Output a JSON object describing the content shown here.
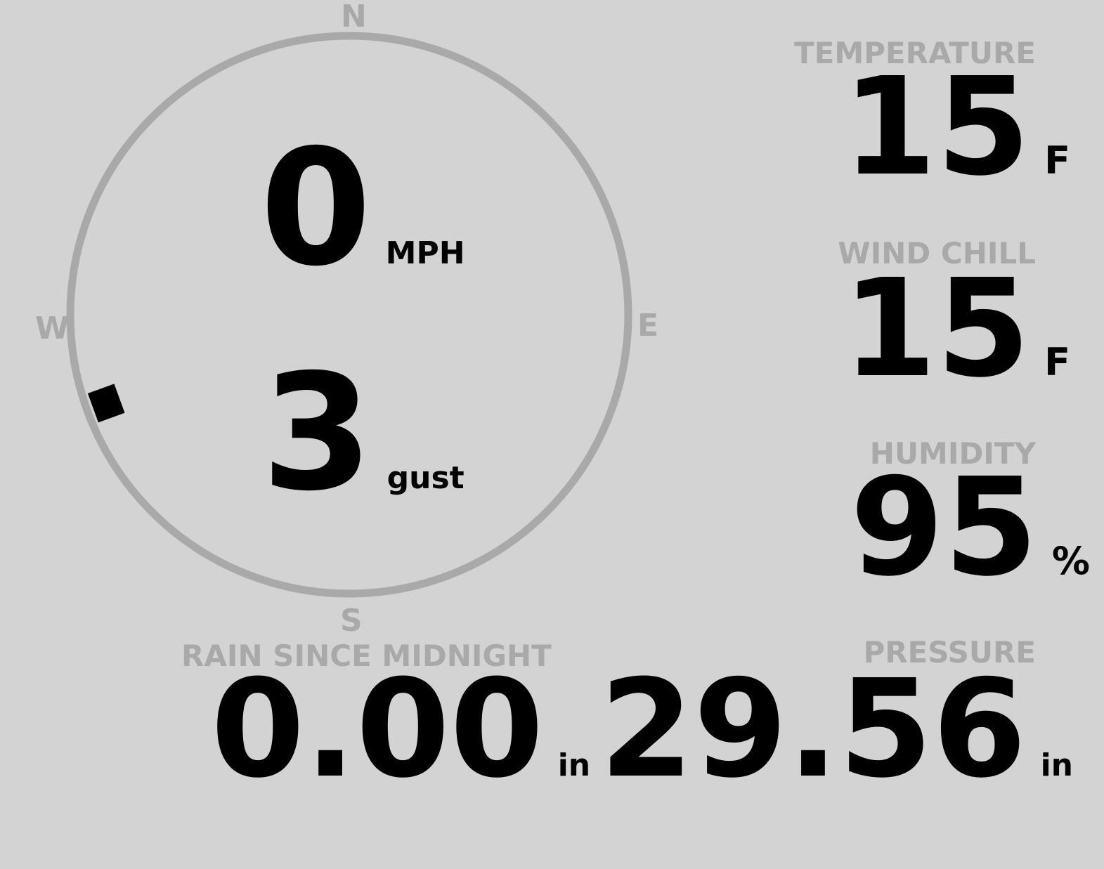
{
  "compass": {
    "north": "N",
    "east": "E",
    "south": "S",
    "west": "W",
    "wind_direction_deg": 250,
    "ring_color": "#a9a9a9",
    "marker_color": "#000000"
  },
  "wind": {
    "speed": "0",
    "speed_unit": "MPH",
    "gust": "3",
    "gust_unit": "gust"
  },
  "temperature": {
    "label": "TEMPERATURE",
    "value": "15",
    "unit": "F"
  },
  "wind_chill": {
    "label": "WIND CHILL",
    "value": "15",
    "unit": "F"
  },
  "humidity": {
    "label": "HUMIDITY",
    "value": "95",
    "unit": "%"
  },
  "rain": {
    "label": "RAIN SINCE MIDNIGHT",
    "value": "0.00",
    "unit": "in"
  },
  "pressure": {
    "label": "PRESSURE",
    "value": "29.56",
    "unit": "in"
  },
  "colors": {
    "background": "#d3d3d3",
    "label": "#a9a9a9",
    "value": "#000000"
  }
}
